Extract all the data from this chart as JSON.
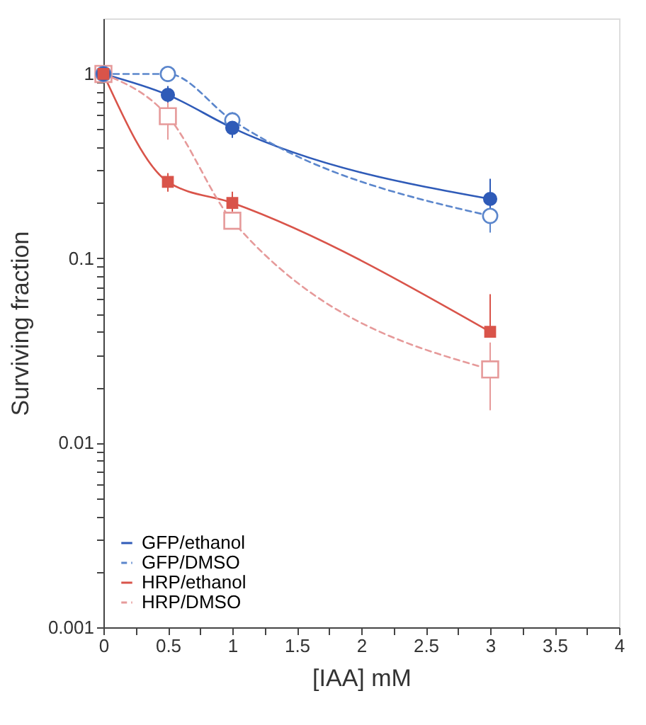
{
  "chart_data": {
    "type": "line",
    "xlabel": "[IAA] mM",
    "ylabel": "Surviving fraction",
    "log": "y",
    "grid": false,
    "legend": "bottom left",
    "xlim": [
      0,
      4
    ],
    "ylim": [
      0.001,
      2
    ],
    "xticks": [
      0,
      {
        "value": 0.25,
        "label": null
      },
      0.5,
      {
        "value": 0.75,
        "label": null
      },
      1,
      {
        "value": 1.25,
        "label": null
      },
      1.5,
      {
        "value": 1.75,
        "label": null
      },
      2,
      {
        "value": 2.25,
        "label": null
      },
      2.5,
      {
        "value": 2.75,
        "label": null
      },
      3,
      {
        "value": 3.25,
        "label": null
      },
      3.5,
      {
        "value": 3.75,
        "label": null
      },
      4
    ],
    "yticks": [
      0.001,
      {
        "value": 0.002,
        "label": null
      },
      {
        "value": 0.003,
        "label": null
      },
      {
        "value": 0.004,
        "label": null
      },
      {
        "value": 0.005,
        "label": null
      },
      {
        "value": 0.006,
        "label": null
      },
      {
        "value": 0.007,
        "label": null
      },
      {
        "value": 0.008,
        "label": null
      },
      {
        "value": 0.009,
        "label": null
      },
      0.01,
      {
        "value": 0.02,
        "label": null
      },
      {
        "value": 0.03,
        "label": null
      },
      {
        "value": 0.04,
        "label": null
      },
      {
        "value": 0.05,
        "label": null
      },
      {
        "value": 0.06,
        "label": null
      },
      {
        "value": 0.07,
        "label": null
      },
      {
        "value": 0.08,
        "label": null
      },
      {
        "value": 0.09,
        "label": null
      },
      0.1,
      {
        "value": 0.2,
        "label": null
      },
      {
        "value": 0.3,
        "label": null
      },
      {
        "value": 0.4,
        "label": null
      },
      {
        "value": 0.5,
        "label": null
      },
      {
        "value": 0.6,
        "label": null
      },
      {
        "value": 0.7,
        "label": null
      },
      {
        "value": 0.8,
        "label": null
      },
      {
        "value": 0.9,
        "label": null
      },
      1
    ],
    "x": [
      0,
      0.5,
      1,
      3
    ],
    "series": [
      {
        "name": "GFP/ethanol",
        "color": "#2f5bb8",
        "marker": "circle",
        "line_style": "solid",
        "values": [
          1,
          0.77,
          0.51,
          0.21
        ],
        "errors": [
          null,
          [
            0.68,
            0.86
          ],
          [
            0.45,
            0.58
          ],
          [
            0.16,
            0.27
          ]
        ]
      },
      {
        "name": "GFP/DMSO",
        "color": "#5b86cc",
        "marker": "circle",
        "line_style": "dashed",
        "values": [
          1,
          1.0,
          0.56,
          0.17
        ],
        "errors": [
          null,
          [
            0.93,
            1.07
          ],
          [
            0.5,
            0.62
          ],
          [
            0.138,
            0.17
          ]
        ]
      },
      {
        "name": "HRP/ethanol",
        "color": "#d9544a",
        "marker": "square",
        "line_style": "solid",
        "values": [
          1,
          0.26,
          0.2,
          0.04
        ],
        "errors": [
          null,
          [
            0.23,
            0.29
          ],
          [
            0.17,
            0.23
          ],
          [
            0.04,
            0.064
          ]
        ]
      },
      {
        "name": "HRP/DMSO",
        "color": "#e69a9a",
        "marker": "square",
        "line_style": "dashed",
        "values": [
          1,
          0.59,
          0.16,
          0.025
        ],
        "errors": [
          null,
          [
            0.44,
            0.7
          ],
          [
            0.15,
            0.18
          ],
          [
            0.015,
            0.035
          ]
        ]
      }
    ]
  }
}
